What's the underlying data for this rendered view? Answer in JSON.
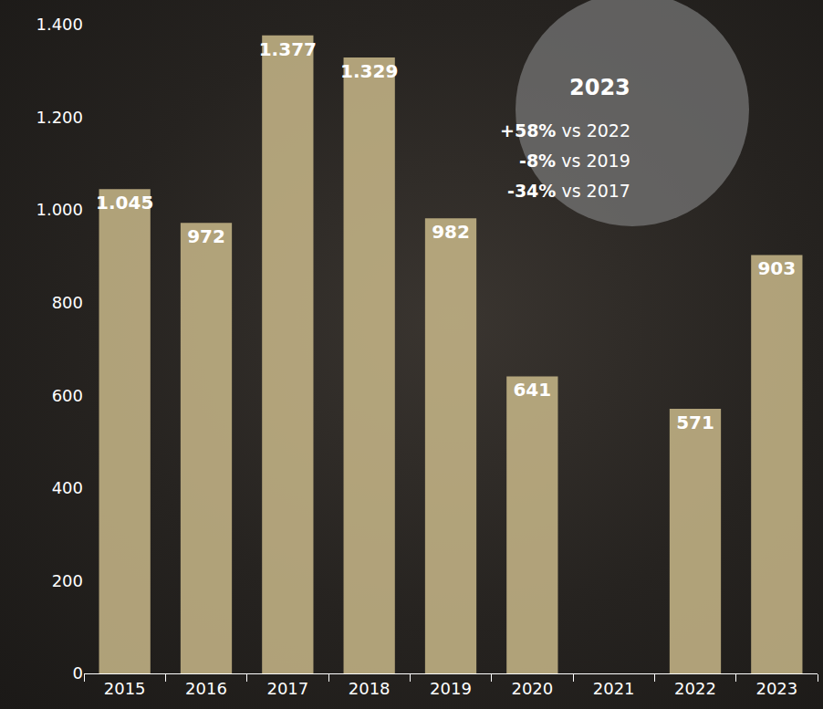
{
  "chart_data": {
    "type": "bar",
    "categories": [
      "2015",
      "2016",
      "2017",
      "2018",
      "2019",
      "2020",
      "2021",
      "2022",
      "2023"
    ],
    "values": [
      1045,
      972,
      1377,
      1329,
      982,
      641,
      null,
      571,
      903
    ],
    "value_labels": [
      "1.045",
      "972",
      "1.377",
      "1.329",
      "982",
      "641",
      null,
      "571",
      "903"
    ],
    "color": "#c9b98a",
    "ylim": [
      0,
      1400
    ],
    "yticks": [
      0,
      200,
      400,
      600,
      800,
      {
        "value": 1000,
        "label": "1.000"
      },
      {
        "value": 1200,
        "label": "1.200"
      },
      {
        "value": 1400,
        "label": "1.400"
      }
    ],
    "grid": false,
    "data_labels": true,
    "annotations": [
      {
        "title": "2023",
        "lines": [
          {
            "value": "+58%",
            "text": "vs 2022"
          },
          {
            "value": "-8%",
            "text": "vs 2019"
          },
          {
            "value": "-34%",
            "text": "vs 2017"
          }
        ]
      }
    ]
  }
}
